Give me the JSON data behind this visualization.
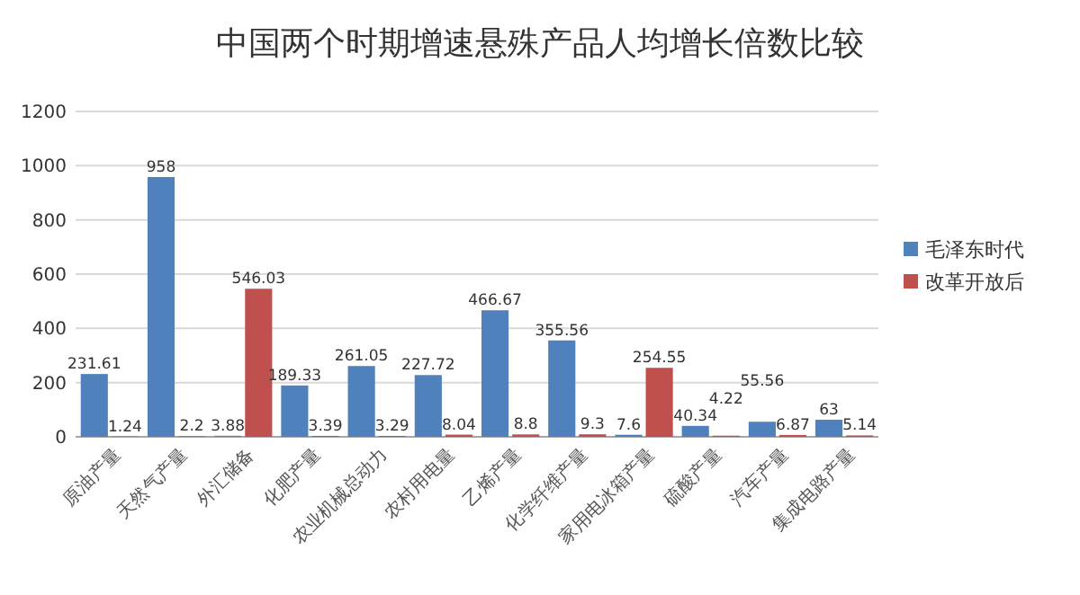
{
  "chart_data": {
    "type": "bar",
    "title": "中国两个时期增速悬殊产品人均增长倍数比较",
    "categories": [
      "原油产量",
      "天然气产量",
      "外汇储备",
      "化肥产量",
      "农业机械总动力",
      "农村用电量",
      "乙烯产量",
      "化学纤维产量",
      "家用电冰箱产量",
      "硫酸产量",
      "汽车产量",
      "集成电路产量"
    ],
    "series": [
      {
        "name": "毛泽东时代",
        "color": "#4f81bd",
        "values": [
          231.61,
          958,
          3.88,
          189.33,
          261.05,
          227.72,
          466.67,
          355.56,
          7.6,
          40.34,
          55.56,
          63
        ]
      },
      {
        "name": "改革开放后",
        "color": "#c0504d",
        "values": [
          1.24,
          2.2,
          546.03,
          3.39,
          3.29,
          8.04,
          8.8,
          9.3,
          254.55,
          4.22,
          6.87,
          5.14
        ]
      }
    ],
    "ylim": [
      0,
      1200
    ],
    "yticks": [
      0,
      200,
      400,
      600,
      800,
      1000,
      1200
    ],
    "grid": "y",
    "legend": "right",
    "data_labels": true
  }
}
